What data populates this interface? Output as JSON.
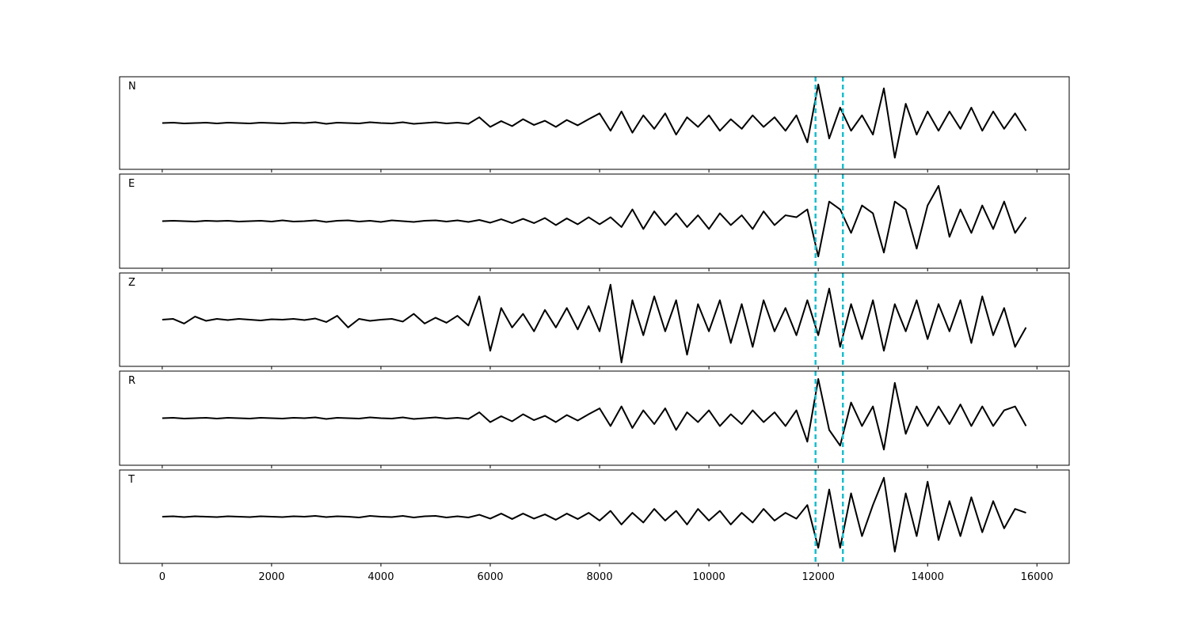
{
  "chart_data": {
    "type": "line",
    "x": [
      0,
      200,
      400,
      600,
      800,
      1000,
      1200,
      1400,
      1600,
      1800,
      2000,
      2200,
      2400,
      2600,
      2800,
      3000,
      3200,
      3400,
      3600,
      3800,
      4000,
      4200,
      4400,
      4600,
      4800,
      5000,
      5200,
      5400,
      5600,
      5800,
      6000,
      6200,
      6400,
      6600,
      6800,
      7000,
      7200,
      7400,
      7600,
      7800,
      8000,
      8200,
      8400,
      8600,
      8800,
      9000,
      9200,
      9400,
      9600,
      9800,
      10000,
      10200,
      10400,
      10600,
      10800,
      11000,
      11200,
      11400,
      11600,
      11800,
      12000,
      12200,
      12400,
      12600,
      12800,
      13000,
      13200,
      13400,
      13600,
      13800,
      14000,
      14200,
      14400,
      14600,
      14800,
      15000,
      15200,
      15400,
      15600,
      15800
    ],
    "xlim": [
      -780,
      16590
    ],
    "xticks": [
      0,
      2000,
      4000,
      6000,
      8000,
      10000,
      12000,
      14000,
      16000
    ],
    "ylim": [
      -1.2,
      1.2
    ],
    "vlines": [
      11950,
      12450
    ],
    "vline_color": "#17becf",
    "series": [
      {
        "name": "N",
        "color": "#000000",
        "values": [
          0,
          0.01,
          -0.01,
          0,
          0.01,
          -0.01,
          0.01,
          0,
          -0.01,
          0.01,
          0,
          -0.01,
          0.01,
          0,
          0.02,
          -0.02,
          0.01,
          0,
          -0.01,
          0.02,
          0,
          -0.01,
          0.02,
          -0.02,
          0,
          0.02,
          -0.01,
          0.01,
          -0.02,
          0.15,
          -0.1,
          0.05,
          -0.08,
          0.1,
          -0.05,
          0.06,
          -0.1,
          0.08,
          -0.06,
          0.1,
          0.25,
          -0.2,
          0.3,
          -0.25,
          0.2,
          -0.15,
          0.25,
          -0.3,
          0.15,
          -0.1,
          0.2,
          -0.2,
          0.1,
          -0.15,
          0.2,
          -0.1,
          0.15,
          -0.2,
          0.2,
          -0.5,
          1.0,
          -0.4,
          0.4,
          -0.2,
          0.2,
          -0.3,
          0.9,
          -0.9,
          0.5,
          -0.3,
          0.3,
          -0.2,
          0.3,
          -0.15,
          0.4,
          -0.2,
          0.3,
          -0.15,
          0.25,
          -0.2
        ]
      },
      {
        "name": "E",
        "color": "#000000",
        "values": [
          0,
          0.01,
          0,
          -0.01,
          0.01,
          0,
          0.01,
          -0.01,
          0,
          0.01,
          -0.01,
          0.02,
          -0.01,
          0,
          0.02,
          -0.02,
          0.01,
          0.02,
          -0.01,
          0.01,
          -0.02,
          0.02,
          0,
          -0.02,
          0.01,
          0.02,
          -0.01,
          0.02,
          -0.02,
          0.03,
          -0.04,
          0.05,
          -0.05,
          0.06,
          -0.05,
          0.08,
          -0.1,
          0.07,
          -0.08,
          0.1,
          -0.08,
          0.1,
          -0.15,
          0.3,
          -0.2,
          0.25,
          -0.1,
          0.2,
          -0.15,
          0.15,
          -0.2,
          0.2,
          -0.1,
          0.15,
          -0.2,
          0.25,
          -0.1,
          0.15,
          0.1,
          0.3,
          -0.9,
          0.5,
          0.3,
          -0.3,
          0.4,
          0.2,
          -0.8,
          0.5,
          0.3,
          -0.7,
          0.4,
          0.9,
          -0.4,
          0.3,
          -0.3,
          0.4,
          -0.2,
          0.5,
          -0.3,
          0.1
        ]
      },
      {
        "name": "Z",
        "color": "#000000",
        "values": [
          0,
          0.02,
          -0.1,
          0.08,
          -0.03,
          0.02,
          -0.01,
          0.02,
          0,
          -0.02,
          0.01,
          0,
          0.02,
          -0.01,
          0.03,
          -0.06,
          0.1,
          -0.2,
          0.02,
          -0.03,
          0,
          0.02,
          -0.05,
          0.15,
          -0.1,
          0.05,
          -0.08,
          0.1,
          -0.15,
          0.6,
          -0.8,
          0.3,
          -0.2,
          0.15,
          -0.3,
          0.25,
          -0.2,
          0.3,
          -0.25,
          0.35,
          -0.3,
          0.9,
          -1.1,
          0.5,
          -0.4,
          0.6,
          -0.3,
          0.5,
          -0.9,
          0.4,
          -0.3,
          0.5,
          -0.6,
          0.4,
          -0.7,
          0.5,
          -0.3,
          0.3,
          -0.4,
          0.5,
          -0.4,
          0.8,
          -0.7,
          0.4,
          -0.5,
          0.5,
          -0.8,
          0.4,
          -0.3,
          0.5,
          -0.5,
          0.4,
          -0.3,
          0.5,
          -0.6,
          0.6,
          -0.4,
          0.3,
          -0.7,
          -0.2
        ]
      },
      {
        "name": "R",
        "color": "#000000",
        "values": [
          0,
          0.01,
          -0.01,
          0,
          0.01,
          -0.01,
          0.01,
          0,
          -0.01,
          0.01,
          0,
          -0.01,
          0.01,
          0,
          0.02,
          -0.02,
          0.01,
          0,
          -0.01,
          0.02,
          0,
          -0.01,
          0.02,
          -0.02,
          0,
          0.02,
          -0.01,
          0.01,
          -0.02,
          0.15,
          -0.1,
          0.05,
          -0.08,
          0.1,
          -0.05,
          0.06,
          -0.1,
          0.08,
          -0.06,
          0.1,
          0.25,
          -0.2,
          0.3,
          -0.25,
          0.2,
          -0.15,
          0.25,
          -0.3,
          0.15,
          -0.1,
          0.2,
          -0.2,
          0.1,
          -0.15,
          0.2,
          -0.1,
          0.15,
          -0.2,
          0.2,
          -0.6,
          1.0,
          -0.3,
          -0.7,
          0.4,
          -0.2,
          0.3,
          -0.8,
          0.9,
          -0.4,
          0.3,
          -0.2,
          0.3,
          -0.15,
          0.35,
          -0.2,
          0.3,
          -0.2,
          0.2,
          0.3,
          -0.2
        ]
      },
      {
        "name": "T",
        "color": "#000000",
        "values": [
          0,
          0.01,
          -0.01,
          0.01,
          0,
          -0.01,
          0.01,
          0,
          -0.01,
          0.01,
          0,
          -0.01,
          0.01,
          0,
          0.02,
          -0.01,
          0.01,
          0,
          -0.02,
          0.02,
          0,
          -0.01,
          0.02,
          -0.02,
          0.01,
          0.02,
          -0.02,
          0.01,
          -0.02,
          0.05,
          -0.05,
          0.08,
          -0.06,
          0.08,
          -0.05,
          0.06,
          -0.08,
          0.08,
          -0.06,
          0.1,
          -0.1,
          0.15,
          -0.2,
          0.1,
          -0.15,
          0.2,
          -0.1,
          0.15,
          -0.2,
          0.2,
          -0.1,
          0.15,
          -0.2,
          0.1,
          -0.15,
          0.2,
          -0.1,
          0.1,
          -0.05,
          0.3,
          -0.8,
          0.7,
          -0.8,
          0.6,
          -0.5,
          0.3,
          1.0,
          -0.9,
          0.6,
          -0.5,
          0.9,
          -0.6,
          0.4,
          -0.5,
          0.5,
          -0.4,
          0.4,
          -0.3,
          0.2,
          0.1
        ]
      }
    ]
  }
}
